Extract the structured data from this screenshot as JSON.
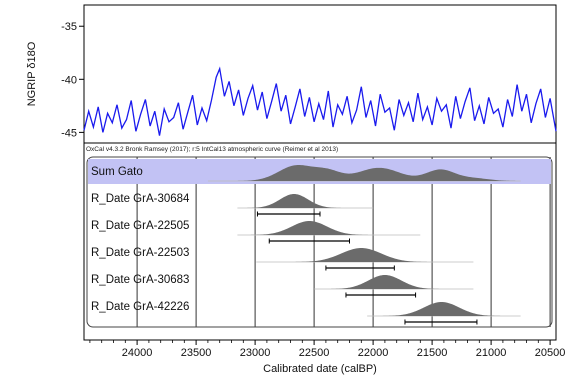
{
  "chart_data": [
    {
      "type": "line",
      "ylabel": "NGRIP δ18O",
      "ylim": [
        -46,
        -33
      ],
      "yticks": [
        -35,
        -40,
        -45
      ],
      "xlim": [
        24450,
        20450
      ],
      "xreversed": true,
      "series": [
        {
          "color": "#1a1aee",
          "x": [
            24450,
            24410,
            24370,
            24330,
            24290,
            24250,
            24210,
            24170,
            24130,
            24090,
            24050,
            24010,
            23970,
            23930,
            23890,
            23850,
            23810,
            23770,
            23730,
            23690,
            23650,
            23610,
            23570,
            23530,
            23490,
            23450,
            23410,
            23370,
            23330,
            23300,
            23260,
            23220,
            23180,
            23140,
            23100,
            23060,
            23020,
            22980,
            22940,
            22900,
            22860,
            22820,
            22780,
            22740,
            22700,
            22660,
            22620,
            22580,
            22540,
            22500,
            22460,
            22420,
            22380,
            22340,
            22300,
            22260,
            22220,
            22180,
            22140,
            22100,
            22060,
            22020,
            21980,
            21940,
            21900,
            21860,
            21820,
            21780,
            21740,
            21700,
            21660,
            21620,
            21580,
            21540,
            21500,
            21460,
            21420,
            21380,
            21340,
            21300,
            21260,
            21220,
            21180,
            21140,
            21100,
            21060,
            21020,
            20980,
            20940,
            20900,
            20860,
            20820,
            20780,
            20740,
            20700,
            20660,
            20620,
            20580,
            20540,
            20500,
            20450
          ],
          "y": [
            -44.8,
            -43.0,
            -44.5,
            -42.6,
            -45.0,
            -43.2,
            -44.1,
            -42.4,
            -44.6,
            -43.8,
            -42.0,
            -44.9,
            -43.3,
            -41.9,
            -44.4,
            -43.0,
            -45.3,
            -42.8,
            -44.0,
            -43.6,
            -42.2,
            -44.7,
            -43.1,
            -41.5,
            -44.3,
            -42.7,
            -43.9,
            -42.0,
            -39.8,
            -39.0,
            -41.6,
            -40.2,
            -42.5,
            -41.0,
            -43.4,
            -41.8,
            -40.6,
            -42.9,
            -41.2,
            -43.7,
            -42.1,
            -40.4,
            -43.0,
            -41.5,
            -44.2,
            -42.6,
            -40.9,
            -43.5,
            -41.7,
            -44.0,
            -42.3,
            -43.8,
            -41.1,
            -44.5,
            -42.4,
            -43.3,
            -41.6,
            -44.1,
            -42.9,
            -40.7,
            -43.6,
            -42.0,
            -44.4,
            -41.4,
            -43.1,
            -42.7,
            -44.8,
            -41.9,
            -43.4,
            -42.2,
            -44.0,
            -41.3,
            -43.8,
            -42.6,
            -44.3,
            -41.8,
            -43.0,
            -42.4,
            -44.6,
            -41.6,
            -43.7,
            -42.1,
            -40.8,
            -43.9,
            -42.5,
            -44.2,
            -41.7,
            -43.2,
            -42.8,
            -44.5,
            -41.9,
            -43.5,
            -40.5,
            -43.0,
            -41.4,
            -44.1,
            -42.3,
            -40.9,
            -43.6,
            -41.8,
            -44.9
          ]
        }
      ]
    },
    {
      "type": "area",
      "subtype": "oxcal-multiplot",
      "caption": "OxCal v4.3.2 Bronk Ramsey (2017); r:5 IntCal13 atmospheric curve (Reimer et al 2013)",
      "xlabel": "Calibrated date (calBP)",
      "xlim": [
        24450,
        20450
      ],
      "xreversed": true,
      "xticks": [
        24000,
        23500,
        23000,
        22500,
        22000,
        21500,
        21000,
        20500
      ],
      "highlight_color": "#c2c2f4",
      "fill_color": "#6b6b6b",
      "series": [
        {
          "name": "Sum Gato",
          "highlight": true,
          "range_line": [
            23400,
            20750
          ],
          "peaks": [
            {
              "mu": 22650,
              "sigma": 150,
              "h": 1.0
            },
            {
              "mu": 22380,
              "sigma": 110,
              "h": 0.55
            },
            {
              "mu": 21950,
              "sigma": 180,
              "h": 0.85
            },
            {
              "mu": 21430,
              "sigma": 120,
              "h": 0.72
            },
            {
              "mu": 21150,
              "sigma": 130,
              "h": 0.18
            }
          ]
        },
        {
          "name": "R_Date GrA-30684",
          "range_line": [
            23150,
            22000
          ],
          "hpd": [
            22980,
            22450
          ],
          "peaks": [
            {
              "mu": 22670,
              "sigma": 120,
              "h": 1.0
            }
          ]
        },
        {
          "name": "R_Date GrA-22505",
          "range_line": [
            23150,
            21600
          ],
          "hpd": [
            22880,
            22200
          ],
          "peaks": [
            {
              "mu": 22540,
              "sigma": 150,
              "h": 1.0
            }
          ]
        },
        {
          "name": "R_Date GrA-22503",
          "range_line": [
            22990,
            21150
          ],
          "hpd": [
            22400,
            21820
          ],
          "peaks": [
            {
              "mu": 22100,
              "sigma": 170,
              "h": 0.95
            }
          ]
        },
        {
          "name": "R_Date GrA-30683",
          "range_line": [
            22500,
            21150
          ],
          "hpd": [
            22230,
            21640
          ],
          "peaks": [
            {
              "mu": 21900,
              "sigma": 140,
              "h": 1.0
            }
          ]
        },
        {
          "name": "R_Date GrA-42226",
          "range_line": [
            22050,
            20750
          ],
          "hpd": [
            21730,
            21120
          ],
          "peaks": [
            {
              "mu": 21420,
              "sigma": 150,
              "h": 1.0
            }
          ]
        }
      ]
    }
  ]
}
